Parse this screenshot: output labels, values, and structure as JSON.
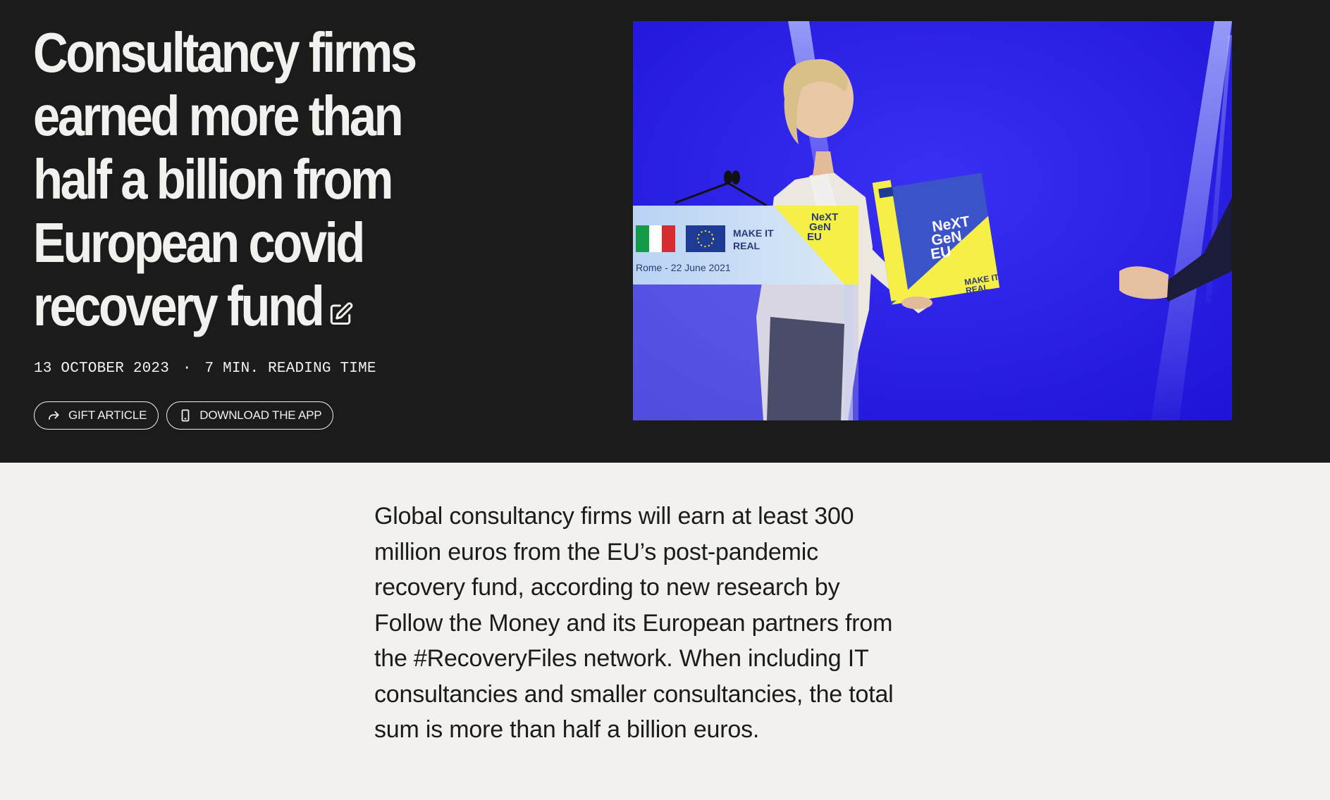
{
  "article": {
    "headline": "Consultancy firms earned more than half a billion from European covid recovery fund",
    "date": "13 OCTOBER 2023",
    "separator": "·",
    "reading_time": "7 MIN. READING TIME",
    "lead": "Global consultancy firms will earn at least 300 million euros from the EU’s post-pandemic recovery fund, according to new research by Follow the Money and its European partners from the #RecoveryFiles network. When including IT consultancies and smaller consultancies, the total sum is more than half a billion euros."
  },
  "actions": {
    "gift_label": "GIFT ARTICLE",
    "download_label": "DOWNLOAD THE APP"
  },
  "photo": {
    "banner_make_it": "MAKE IT",
    "banner_real": "REAL",
    "banner_caption": "Rome - 22 June 2021",
    "logo_line1": "NeXT",
    "logo_line2": "GeN",
    "logo_line3": "EU"
  },
  "icons": {
    "edit": "pencil-square-icon",
    "gift": "share-arrow-icon",
    "download": "phone-icon"
  },
  "colors": {
    "hero_background": "#1b1b1b",
    "page_background": "#f3f1ed",
    "photo_blue": "#2a1ee8",
    "logo_yellow": "#f6ef45"
  }
}
